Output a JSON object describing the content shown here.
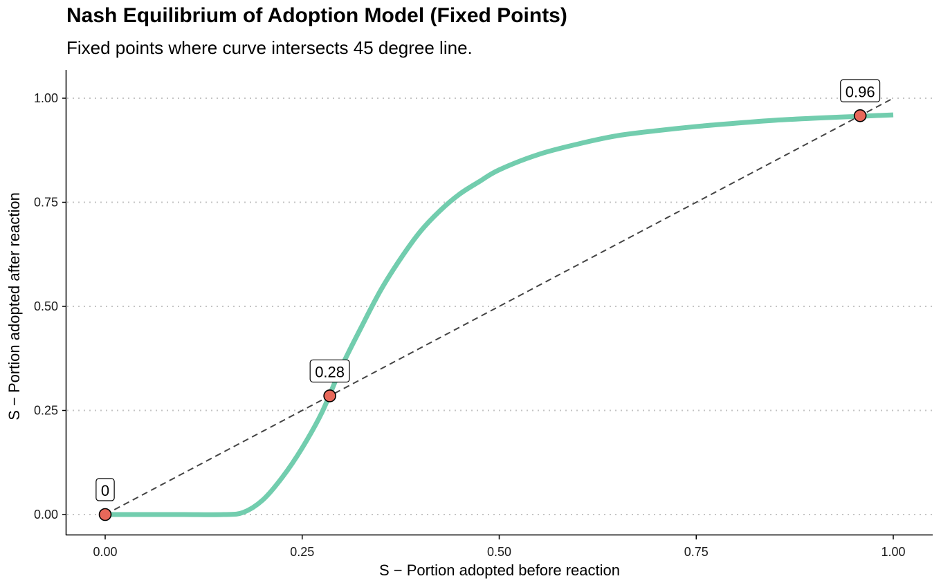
{
  "chart_data": {
    "type": "line",
    "title": "Nash Equilibrium of Adoption Model (Fixed Points)",
    "subtitle": "Fixed points where curve intersects 45 degree line.",
    "xlabel": "S − Portion adopted before reaction",
    "ylabel": "S − Portion adopted after reaction",
    "xlim": [
      -0.025,
      1.025
    ],
    "ylim": [
      -0.05,
      1.07
    ],
    "x_ticks": [
      {
        "value": 0.0,
        "label": "0.00"
      },
      {
        "value": 0.25,
        "label": "0.25"
      },
      {
        "value": 0.5,
        "label": "0.50"
      },
      {
        "value": 0.75,
        "label": "0.75"
      },
      {
        "value": 1.0,
        "label": "1.00"
      }
    ],
    "y_ticks": [
      {
        "value": 0.0,
        "label": "0.00"
      },
      {
        "value": 0.25,
        "label": "0.25"
      },
      {
        "value": 0.5,
        "label": "0.50"
      },
      {
        "value": 0.75,
        "label": "0.75"
      },
      {
        "value": 1.0,
        "label": "1.00"
      }
    ],
    "grid": "horizontal dotted",
    "series": [
      {
        "style": "solid-thick",
        "color": "#72cdae",
        "x": [
          0.0,
          0.05,
          0.1,
          0.15,
          0.175,
          0.2,
          0.225,
          0.25,
          0.275,
          0.3,
          0.325,
          0.35,
          0.375,
          0.4,
          0.425,
          0.45,
          0.475,
          0.5,
          0.55,
          0.6,
          0.65,
          0.7,
          0.75,
          0.8,
          0.85,
          0.9,
          0.95,
          1.0
        ],
        "y": [
          0.0,
          0.0,
          0.0,
          0.0,
          0.005,
          0.035,
          0.09,
          0.16,
          0.245,
          0.355,
          0.45,
          0.54,
          0.615,
          0.68,
          0.73,
          0.77,
          0.8,
          0.828,
          0.865,
          0.89,
          0.91,
          0.922,
          0.932,
          0.94,
          0.947,
          0.952,
          0.956,
          0.96
        ]
      },
      {
        "style": "dashed",
        "color": "#444444",
        "x": [
          0.0,
          1.0
        ],
        "y": [
          0.0,
          1.0
        ]
      }
    ],
    "fixed_points": [
      {
        "x": 0.0,
        "y": 0.0,
        "label": "0"
      },
      {
        "x": 0.285,
        "y": 0.285,
        "label": "0.28"
      },
      {
        "x": 0.958,
        "y": 0.958,
        "label": "0.96"
      }
    ],
    "point_color": "#e8685a"
  }
}
